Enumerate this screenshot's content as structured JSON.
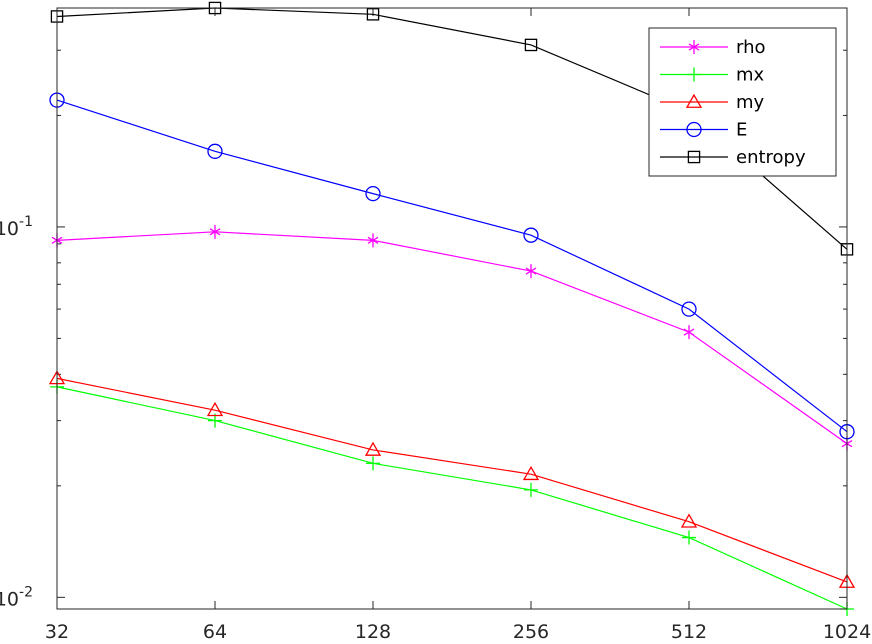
{
  "chart_data": {
    "type": "line",
    "title": "",
    "xlabel": "",
    "ylabel": "",
    "x_scale": "log2",
    "y_scale": "log10",
    "x": [
      32,
      64,
      128,
      256,
      512,
      1024
    ],
    "x_tick_labels": [
      "32",
      "64",
      "128",
      "256",
      "512",
      "1024"
    ],
    "y_ticks": [
      {
        "value": 0.1,
        "base": "10",
        "exp": "-1"
      },
      {
        "value": 0.01,
        "base": "10",
        "exp": "-2"
      }
    ],
    "ylim": [
      0.0093,
      0.39
    ],
    "xlim": [
      32,
      1024
    ],
    "grid": false,
    "legend_position": "top-right",
    "series": [
      {
        "name": "rho",
        "color": "#ff00ff",
        "marker": "asterisk",
        "values": [
          0.092,
          0.097,
          0.092,
          0.076,
          0.052,
          0.026
        ]
      },
      {
        "name": "mx",
        "color": "#00ff00",
        "marker": "plus",
        "values": [
          0.037,
          0.03,
          0.023,
          0.0195,
          0.0145,
          0.0093
        ]
      },
      {
        "name": "my",
        "color": "#ff0000",
        "marker": "triangle",
        "values": [
          0.039,
          0.032,
          0.025,
          0.0215,
          0.016,
          0.011
        ]
      },
      {
        "name": "E",
        "color": "#0000ff",
        "marker": "circle",
        "values": [
          0.22,
          0.16,
          0.123,
          0.095,
          0.06,
          0.028
        ]
      },
      {
        "name": "entropy",
        "color": "#000000",
        "marker": "square",
        "values": [
          0.37,
          0.39,
          0.375,
          0.31,
          0.205,
          0.087
        ]
      }
    ]
  }
}
